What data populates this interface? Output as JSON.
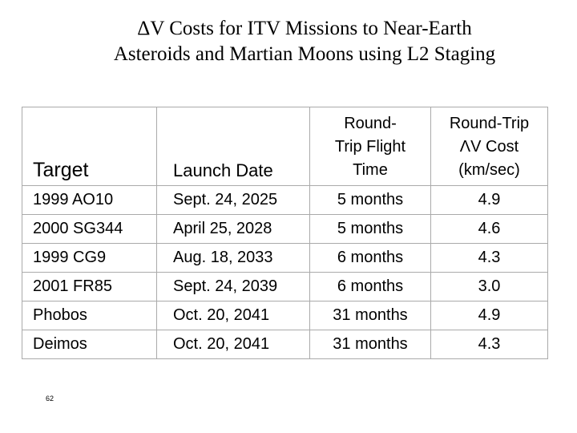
{
  "title": {
    "line1": "ΔV Costs for ITV Missions to Near-Earth",
    "line2": "Asteroids and Martian Moons using L2 Staging"
  },
  "table": {
    "headers": {
      "target": "Target",
      "launch_date": "Launch Date",
      "flight_time": [
        "Round-",
        "Trip Flight",
        "Time"
      ],
      "dv_cost": [
        "Round-Trip",
        "ΛV Cost",
        "(km/sec)"
      ]
    },
    "rows": [
      {
        "target": "1999 AO10",
        "launch_date": "Sept. 24, 2025",
        "flight_time": "5 months",
        "dv_cost": "4.9"
      },
      {
        "target": "2000 SG344",
        "launch_date": "April 25, 2028",
        "flight_time": "5 months",
        "dv_cost": "4.6"
      },
      {
        "target": "1999 CG9",
        "launch_date": "Aug. 18, 2033",
        "flight_time": "6 months",
        "dv_cost": "4.3"
      },
      {
        "target": "2001 FR85",
        "launch_date": "Sept. 24, 2039",
        "flight_time": "6 months",
        "dv_cost": "3.0"
      },
      {
        "target": "Phobos",
        "launch_date": "Oct. 20, 2041",
        "flight_time": "31 months",
        "dv_cost": "4.9"
      },
      {
        "target": "Deimos",
        "launch_date": "Oct. 20, 2041",
        "flight_time": "31 months",
        "dv_cost": "4.3"
      }
    ]
  },
  "page_number": "62"
}
